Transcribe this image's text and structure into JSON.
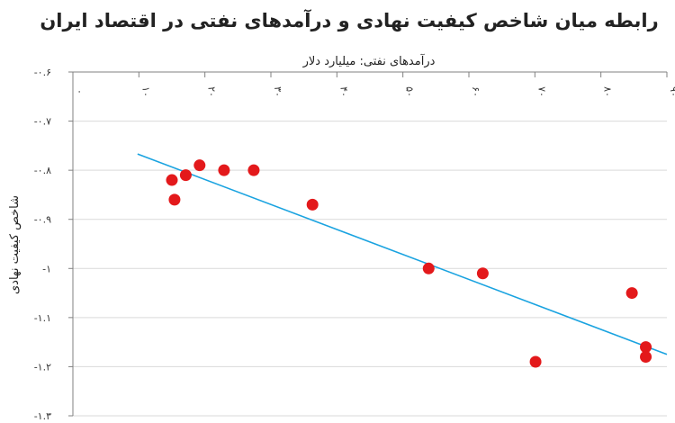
{
  "chart_data": {
    "type": "scatter",
    "title": "رابطه میان شاخص کیفیت نهادی و درآمدهای نفتی در اقتصاد ایران",
    "xlabel": "درآمدهای نفتی: میلیارد دلار",
    "ylabel": "شاخص کیفیت نهادی",
    "xlim": [
      0,
      90
    ],
    "ylim": [
      -1.3,
      -0.6
    ],
    "x_ticks": [
      0,
      10,
      20,
      30,
      40,
      50,
      60,
      70,
      80,
      90
    ],
    "x_tick_labels": [
      "۰",
      "۱۰",
      "۲۰",
      "۳۰",
      "۴۰",
      "۵۰",
      "۶۰",
      "۷۰",
      "۸۰",
      "۹۰"
    ],
    "y_ticks": [
      -0.6,
      -0.7,
      -0.8,
      -0.9,
      -1,
      -1.1,
      -1.2,
      -1.3
    ],
    "y_tick_labels": [
      "-۰.۶",
      "-۰.۷",
      "-۰.۸",
      "-۰.۹",
      "-۱",
      "-۱.۱",
      "-۱.۲",
      "-۱.۳"
    ],
    "x_axis_position": "top",
    "grid": "horizontal",
    "points": [
      {
        "x": 15.0,
        "y": -0.82
      },
      {
        "x": 15.4,
        "y": -0.86
      },
      {
        "x": 17.1,
        "y": -0.81
      },
      {
        "x": 19.2,
        "y": -0.79
      },
      {
        "x": 22.9,
        "y": -0.8
      },
      {
        "x": 27.4,
        "y": -0.8
      },
      {
        "x": 36.3,
        "y": -0.87
      },
      {
        "x": 53.9,
        "y": -1.0
      },
      {
        "x": 62.1,
        "y": -1.01
      },
      {
        "x": 70.1,
        "y": -1.19
      },
      {
        "x": 84.7,
        "y": -1.05
      },
      {
        "x": 86.8,
        "y": -1.16
      },
      {
        "x": 86.8,
        "y": -1.18
      }
    ],
    "trendline": {
      "x": [
        9.8,
        90
      ],
      "y": [
        -0.767,
        -1.175
      ]
    },
    "colors": {
      "points": "#e3191b",
      "trendline": "#1aa3e0",
      "grid": "#d9d9d9",
      "axis": "#808080"
    }
  }
}
